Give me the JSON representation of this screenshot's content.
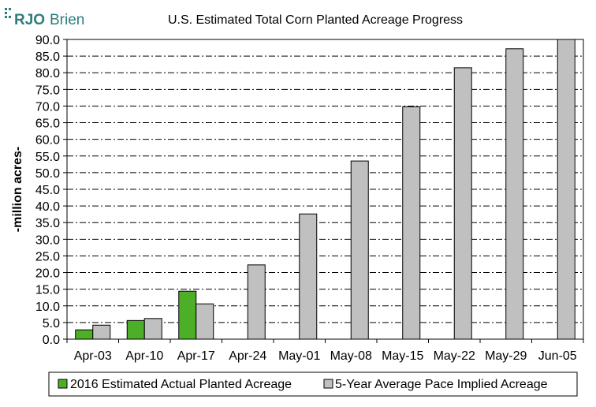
{
  "logo": {
    "text_bold": "RJO",
    "text_light": "Brien",
    "color": "#2e7d7d"
  },
  "chart_data": {
    "type": "bar",
    "title": "U.S. Estimated Total Corn Planted Acreage Progress",
    "xlabel": "",
    "ylabel": "-million acres-",
    "ylim": [
      0,
      90
    ],
    "ytick_step": 5,
    "grid": "horizontal dash-dot",
    "legend_position": "bottom",
    "categories": [
      "Apr-03",
      "Apr-10",
      "Apr-17",
      "Apr-24",
      "May-01",
      "May-08",
      "May-15",
      "May-22",
      "May-29",
      "Jun-05"
    ],
    "series": [
      {
        "name": "2016 Estimated Actual Planted Acreage",
        "color": "#4caf27",
        "values": [
          2.8,
          5.6,
          14.4,
          null,
          null,
          null,
          null,
          null,
          null,
          null
        ]
      },
      {
        "name": "5-Year Average Pace Implied Acreage",
        "color": "#c0c0c0",
        "values": [
          4.2,
          6.2,
          10.6,
          22.3,
          37.6,
          53.5,
          69.8,
          81.5,
          87.2,
          90.0
        ]
      }
    ]
  }
}
